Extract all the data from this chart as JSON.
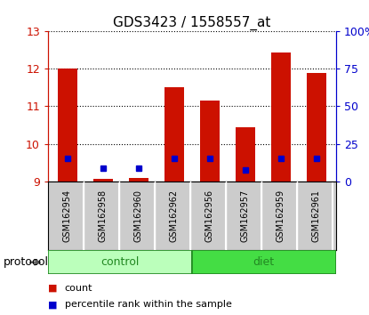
{
  "title": "GDS3423 / 1558557_at",
  "samples": [
    "GSM162954",
    "GSM162958",
    "GSM162960",
    "GSM162962",
    "GSM162956",
    "GSM162957",
    "GSM162959",
    "GSM162961"
  ],
  "red_bar_tops": [
    12.0,
    9.05,
    9.08,
    11.5,
    11.15,
    10.45,
    12.45,
    11.9
  ],
  "red_bar_base": 9.0,
  "blue_marker_vals": [
    9.6,
    9.35,
    9.35,
    9.6,
    9.6,
    9.3,
    9.6,
    9.6
  ],
  "ylim_left": [
    9,
    13
  ],
  "ylim_right": [
    0,
    100
  ],
  "yticks_left": [
    9,
    10,
    11,
    12,
    13
  ],
  "yticks_right": [
    0,
    25,
    50,
    75,
    100
  ],
  "ytick_labels_right": [
    "0",
    "25",
    "50",
    "75",
    "100%"
  ],
  "protocol_groups": [
    "control",
    "diet"
  ],
  "protocol_group_ranges": [
    [
      0,
      4
    ],
    [
      4,
      8
    ]
  ],
  "protocol_colors": [
    "#bbffbb",
    "#44dd44"
  ],
  "protocol_label": "protocol",
  "legend_count_label": "count",
  "legend_pct_label": "percentile rank within the sample",
  "bar_color": "#cc1100",
  "marker_color": "#0000cc",
  "axis_color_left": "#cc1100",
  "axis_color_right": "#0000cc",
  "bar_width": 0.55,
  "plot_bg": "#ffffff",
  "label_bg": "#cccccc",
  "fig_width": 4.15,
  "fig_height": 3.54,
  "dpi": 100
}
